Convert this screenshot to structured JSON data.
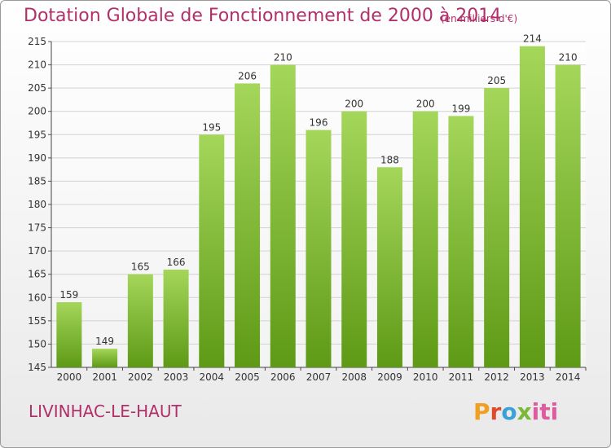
{
  "header": {
    "title": "Dotation Globale de Fonctionnement de 2000 à 2014",
    "unit": "(en milliers d'€)"
  },
  "footer": {
    "commune": "LIVINHAC-LE-HAUT",
    "logo": "Proxiti",
    "logo_letters": [
      "P",
      "r",
      "o",
      "x",
      "iti"
    ]
  },
  "colors": {
    "title": "#b0306a",
    "bar_top": "#a4d65a",
    "bar_bottom": "#5e9a16",
    "grid": "#d2d2d2"
  },
  "chart_data": {
    "type": "bar",
    "title": "Dotation Globale de Fonctionnement de 2000 à 2014",
    "xlabel": "",
    "ylabel": "",
    "categories": [
      "2000",
      "2001",
      "2002",
      "2003",
      "2004",
      "2005",
      "2006",
      "2007",
      "2008",
      "2009",
      "2010",
      "2011",
      "2012",
      "2013",
      "2014"
    ],
    "values": [
      159,
      149,
      165,
      166,
      195,
      206,
      210,
      196,
      200,
      188,
      200,
      199,
      205,
      214,
      210
    ],
    "ylim": [
      145,
      215
    ],
    "yticks": [
      145,
      150,
      155,
      160,
      165,
      170,
      175,
      180,
      185,
      190,
      195,
      200,
      205,
      210,
      215
    ],
    "data_labels": true,
    "grid": true
  }
}
